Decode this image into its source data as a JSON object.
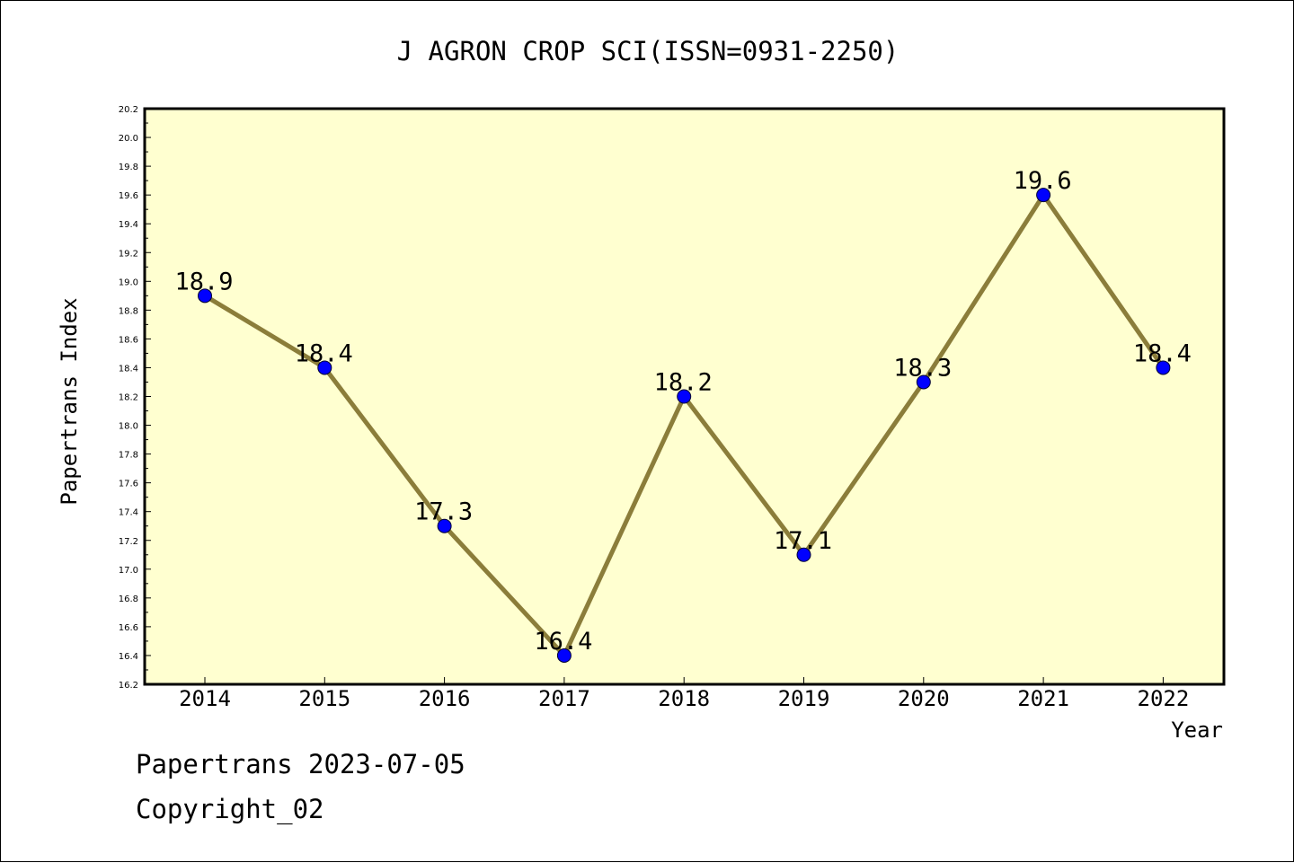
{
  "chart_data": {
    "type": "line",
    "title": "J AGRON CROP SCI(ISSN=0931-2250)",
    "xlabel": "Year",
    "ylabel": "Papertrans Index",
    "categories": [
      "2014",
      "2015",
      "2016",
      "2017",
      "2018",
      "2019",
      "2020",
      "2021",
      "2022"
    ],
    "values": [
      18.9,
      18.4,
      17.3,
      16.4,
      18.2,
      17.1,
      18.3,
      19.6,
      18.4
    ],
    "value_labels": [
      "18.9",
      "18.4",
      "17.3",
      "16.4",
      "18.2",
      "17.1",
      "18.3",
      "19.6",
      "18.4"
    ],
    "ylim": [
      16.2,
      20.2
    ],
    "yticks": [
      "16.2",
      "16.4",
      "16.6",
      "16.8",
      "17.0",
      "17.2",
      "17.4",
      "17.6",
      "17.8",
      "18.0",
      "18.2",
      "18.4",
      "18.6",
      "18.8",
      "19.0",
      "19.2",
      "19.4",
      "19.6",
      "19.8",
      "20.0",
      "20.2"
    ],
    "grid": false,
    "colors": {
      "plot_background": "#FFFFD0",
      "line": "#8B7D3A",
      "marker": "#0000FF"
    }
  },
  "footer": {
    "line1": "Papertrans 2023-07-05",
    "line2": "Copyright_02"
  }
}
